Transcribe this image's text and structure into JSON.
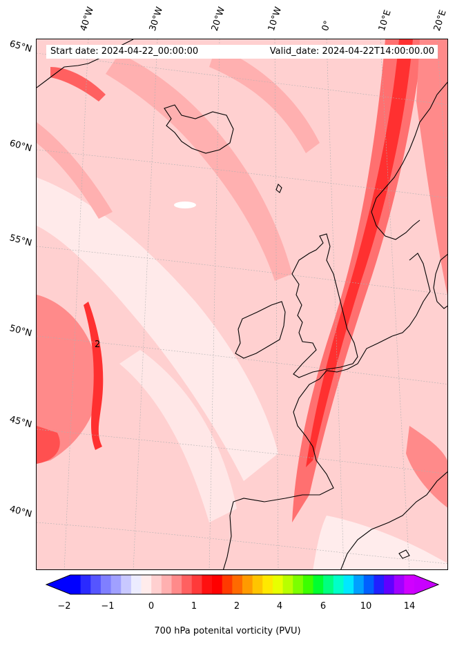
{
  "header": {
    "start_date": "Start date: 2024-04-22_00:00:00",
    "valid_date": "Valid_date: 2024-04-22T14:00:00.00"
  },
  "lat_labels": [
    "65°N",
    "60°N",
    "55°N",
    "50°N",
    "45°N",
    "40°N"
  ],
  "lon_labels": [
    "40°W",
    "30°W",
    "20°W",
    "10°W",
    "0°",
    "10°E",
    "20°E"
  ],
  "contour_label": "2",
  "colorbar": {
    "label": "700 hPa potenital vorticity (PVU)",
    "ticks": [
      "−2",
      "−1",
      "0",
      "1",
      "2",
      "4",
      "6",
      "10",
      "14"
    ],
    "colors": [
      "#0000ff",
      "#2a2aff",
      "#5555ff",
      "#7f7fff",
      "#a0a0ff",
      "#c8c8ff",
      "#ececff",
      "#ffecec",
      "#ffd0d0",
      "#ffb0b0",
      "#ff8a8a",
      "#ff6060",
      "#ff3a3a",
      "#ff1010",
      "#ff0000",
      "#ff3a00",
      "#ff6a00",
      "#ff9a00",
      "#ffc400",
      "#ffe800",
      "#e8ff00",
      "#b8ff00",
      "#7cff00",
      "#3cff00",
      "#00ff30",
      "#00ff80",
      "#00ffc8",
      "#00e8ff",
      "#00a0ff",
      "#0060ff",
      "#2020ff",
      "#6000ff",
      "#a000ff",
      "#d000ff"
    ],
    "extend_min_color": "#0000ff",
    "extend_max_color": "#c800ff"
  },
  "colors": {
    "background_pv": "#ffd0d0",
    "light_pv": "#ffecec",
    "medium_pv": "#ffb0b0",
    "strong_pv": "#ff7070",
    "max_pv": "#ff2020",
    "coast": "#000000"
  }
}
